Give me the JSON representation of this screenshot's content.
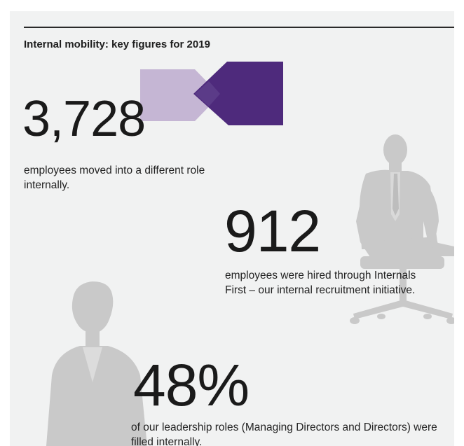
{
  "title": "Internal mobility: key figures for 2019",
  "stats": [
    {
      "figure": "3,728",
      "description": "employees moved into a different role internally."
    },
    {
      "figure": "912",
      "description": "employees were hired through Internals First – our internal recruitment initiative."
    },
    {
      "figure": "48%",
      "description": "of our leadership roles (Managing Directors and Directors) were filled internally."
    }
  ],
  "colors": {
    "panel_background": "#f1f2f2",
    "silhouette": "#c8c8c8",
    "shape_light_purple": "#c5b6d4",
    "shape_dark_purple": "#4e2a7c",
    "shape_overlap": "#5a3a86",
    "text": "#1a1a1a"
  },
  "icons": [
    "seated-businessman-silhouette",
    "standing-woman-silhouette",
    "chevron-arrow-shapes"
  ]
}
